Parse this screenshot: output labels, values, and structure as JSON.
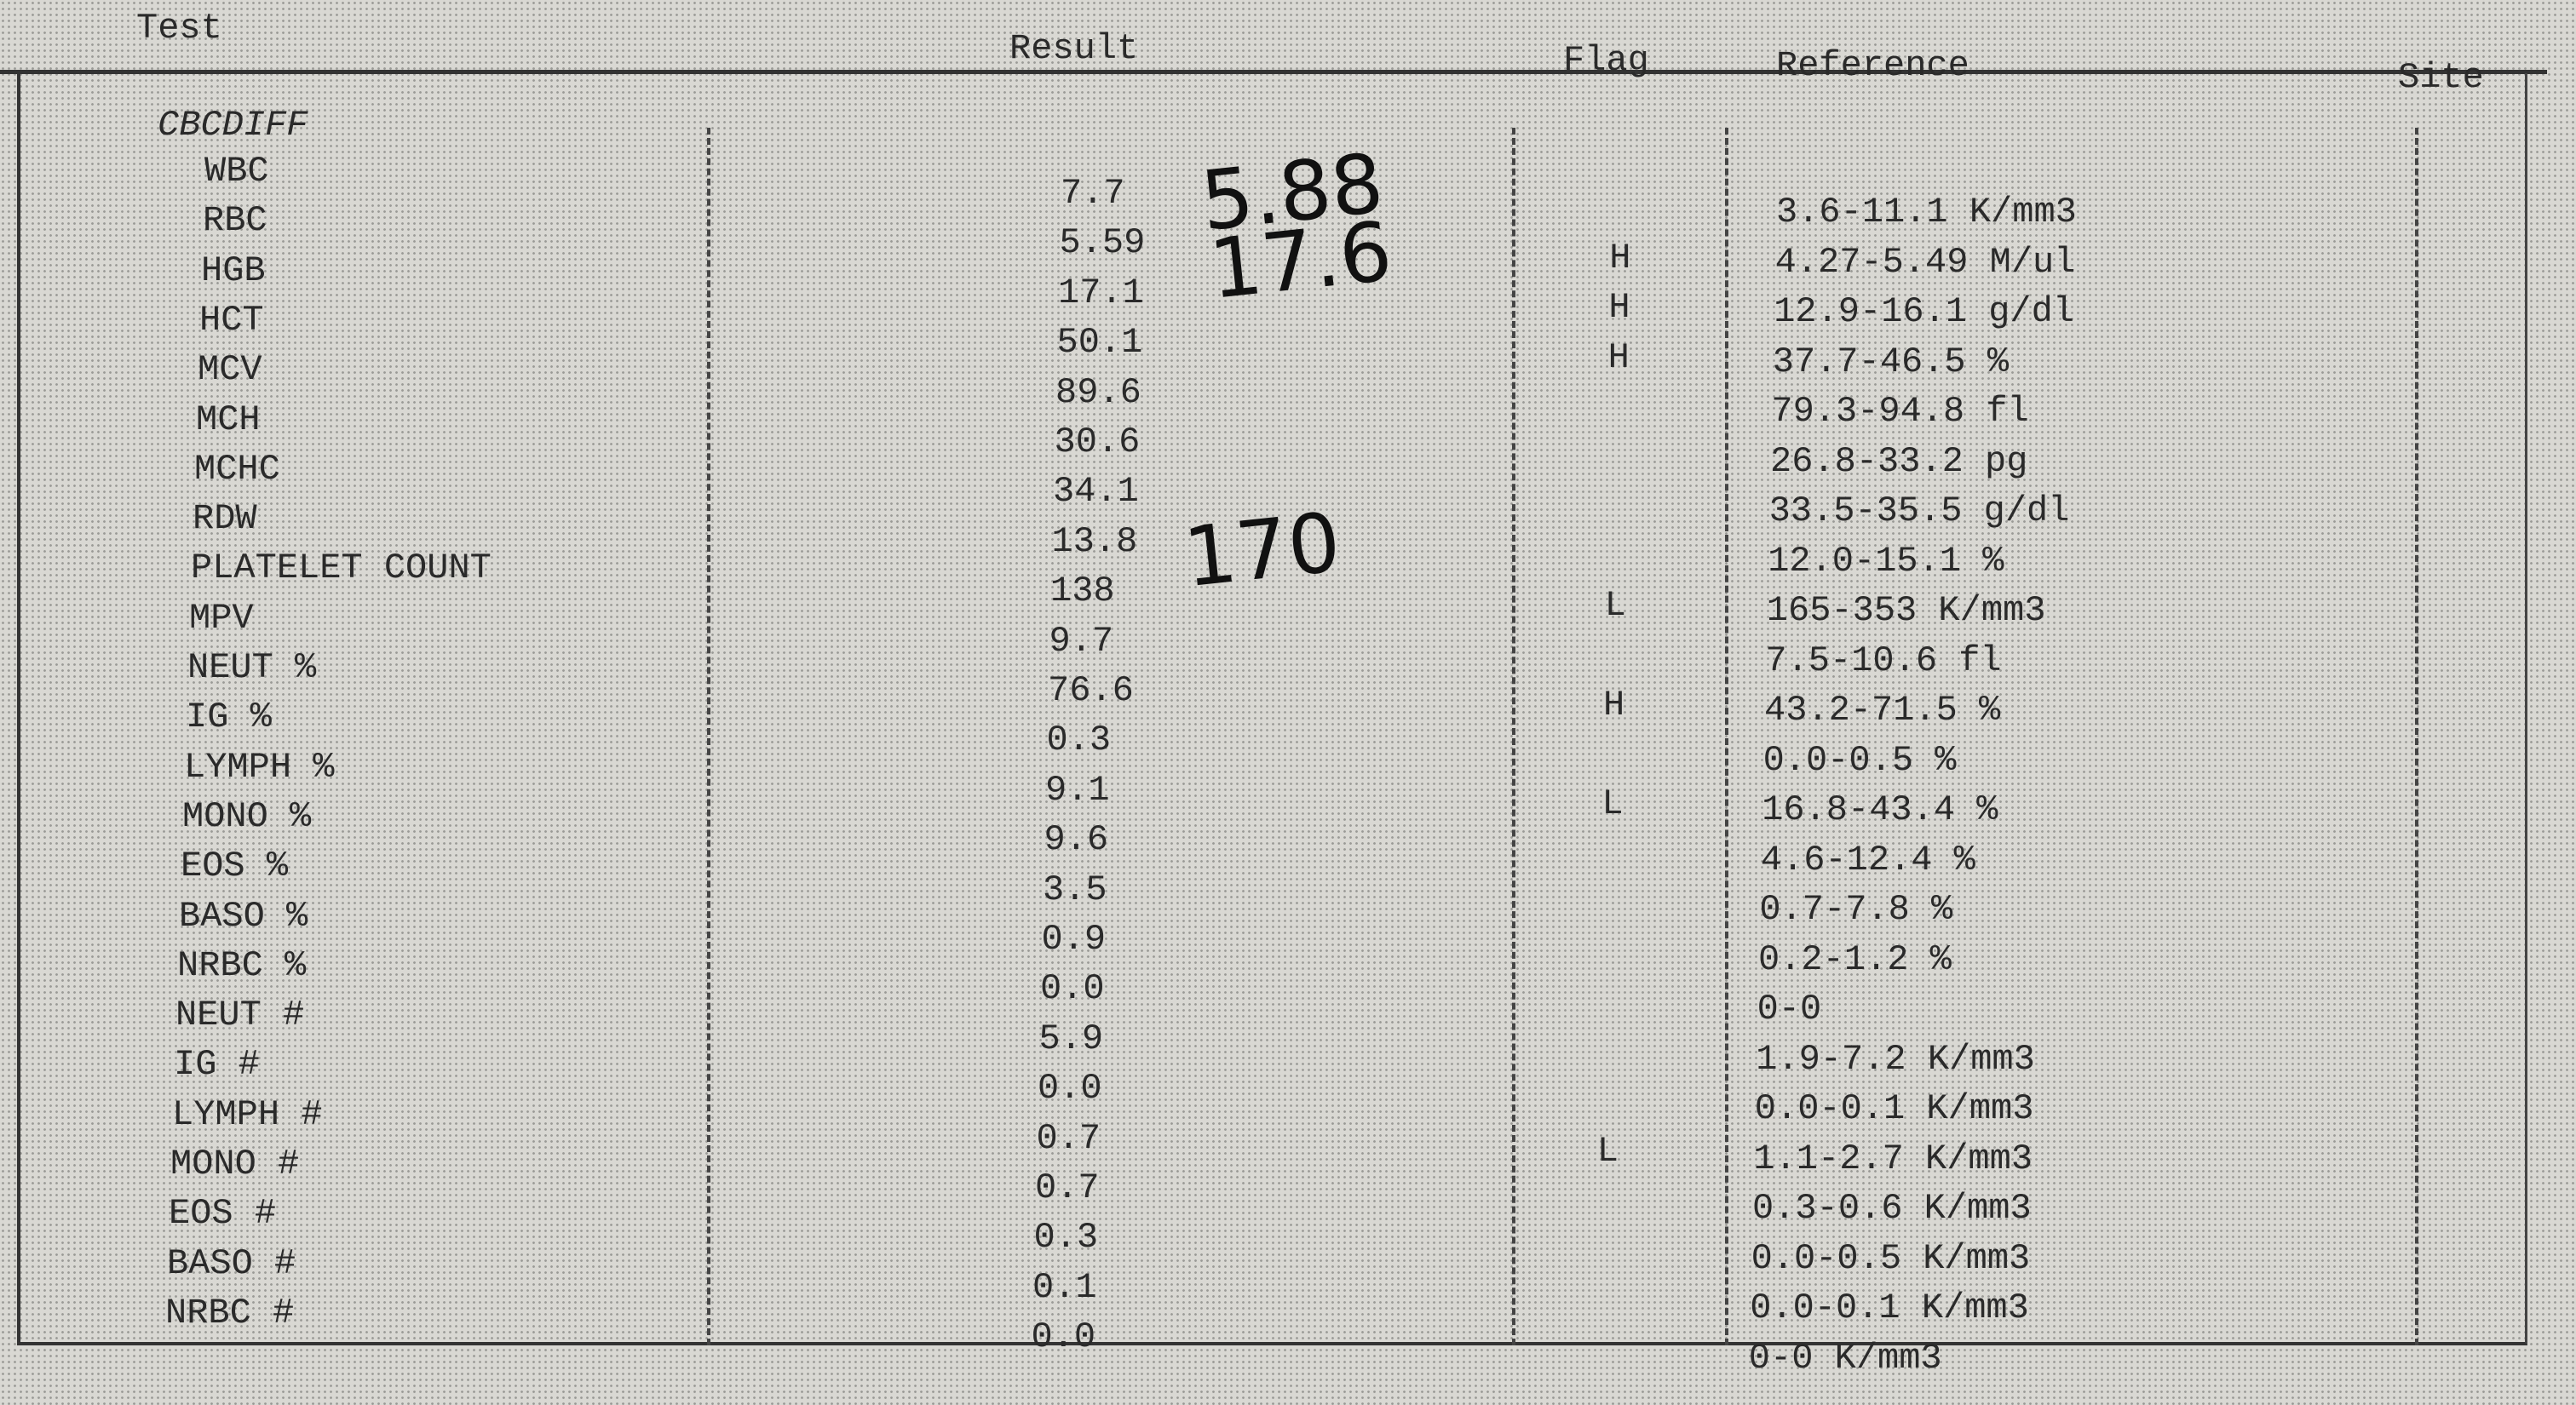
{
  "header": {
    "test": "Test",
    "result": "Result",
    "flag": "Flag",
    "reference": "Reference",
    "site": "Site"
  },
  "section": "CBCDIFF",
  "rows": [
    {
      "test": "WBC",
      "result": "7.7",
      "reference": "3.6-11.1 K/mm3"
    },
    {
      "test": "RBC",
      "result": "5.59",
      "flag": "H",
      "reference": "4.27-5.49 M/ul"
    },
    {
      "test": "HGB",
      "result": "17.1",
      "flag": "H",
      "reference": "12.9-16.1 g/dl"
    },
    {
      "test": "HCT",
      "result": "50.1",
      "flag": "H",
      "reference": "37.7-46.5 %"
    },
    {
      "test": "MCV",
      "result": "89.6",
      "reference": "79.3-94.8 fl"
    },
    {
      "test": "MCH",
      "result": "30.6",
      "reference": "26.8-33.2 pg"
    },
    {
      "test": "MCHC",
      "result": "34.1",
      "reference": "33.5-35.5 g/dl"
    },
    {
      "test": "RDW",
      "result": "13.8",
      "reference": "12.0-15.1 %"
    },
    {
      "test": "PLATELET COUNT",
      "result": "138",
      "flag": "L",
      "reference": "165-353 K/mm3"
    },
    {
      "test": "MPV",
      "result": "9.7",
      "reference": "7.5-10.6 fl"
    },
    {
      "test": "NEUT %",
      "result": "76.6",
      "flag": "H",
      "reference": "43.2-71.5 %"
    },
    {
      "test": "IG %",
      "result": "0.3",
      "reference": "0.0-0.5 %"
    },
    {
      "test": "LYMPH %",
      "result": "9.1",
      "flag": "L",
      "reference": "16.8-43.4 %"
    },
    {
      "test": "MONO %",
      "result": "9.6",
      "reference": "4.6-12.4 %"
    },
    {
      "test": "EOS %",
      "result": "3.5",
      "reference": "0.7-7.8 %"
    },
    {
      "test": "BASO %",
      "result": "0.9",
      "reference": "0.2-1.2 %"
    },
    {
      "test": "NRBC %",
      "result": "0.0",
      "reference": "0-0"
    },
    {
      "test": "NEUT #",
      "result": "5.9",
      "reference": "1.9-7.2 K/mm3"
    },
    {
      "test": "IG #",
      "result": "0.0",
      "reference": "0.0-0.1 K/mm3"
    },
    {
      "test": "LYMPH #",
      "result": "0.7",
      "flag": "L",
      "reference": "1.1-2.7 K/mm3"
    },
    {
      "test": "MONO #",
      "result": "0.7",
      "reference": "0.3-0.6 K/mm3"
    },
    {
      "test": "EOS #",
      "result": "0.3",
      "reference": "0.0-0.5 K/mm3"
    },
    {
      "test": "BASO #",
      "result": "0.1",
      "reference": "0.0-0.1 K/mm3"
    },
    {
      "test": "NRBC #",
      "result": "0.0",
      "reference": "0-0 K/mm3"
    }
  ],
  "handwritten": [
    "5.88",
    "17.6",
    "170"
  ]
}
